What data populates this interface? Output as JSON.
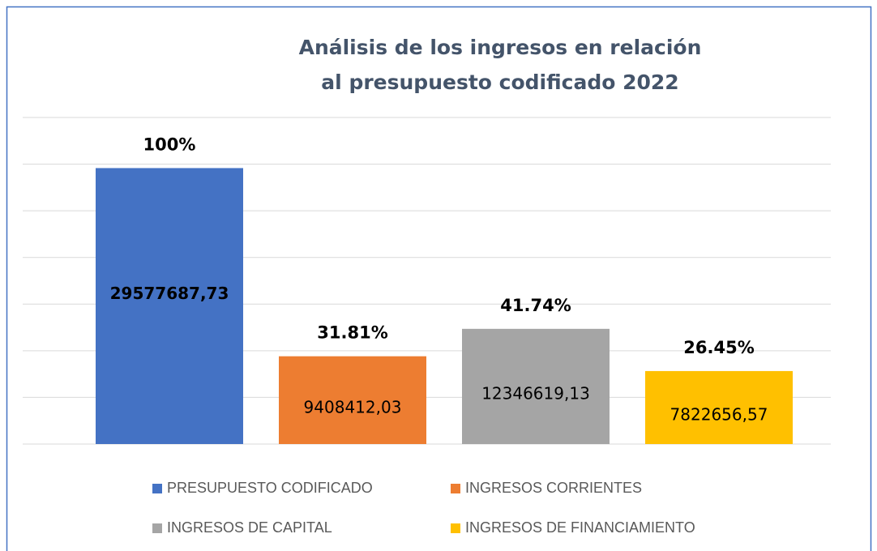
{
  "chart_data": {
    "type": "bar",
    "title": [
      "Análisis de los ingresos en relación",
      "al presupuesto codificado 2022"
    ],
    "categories": [
      "PRESUPUESTO CODIFICADO",
      "INGRESOS CORRIENTES",
      "INGRESOS DE CAPITAL",
      "INGRESOS DE FINANCIAMIENTO"
    ],
    "values": [
      29577687.73,
      9408412.03,
      12346619.13,
      7822656.57
    ],
    "value_labels": [
      "29577687,73",
      "9408412,03",
      "12346619,13",
      "7822656,57"
    ],
    "annotations": [
      "100%",
      "31.81%",
      "41.74%",
      "26.45%"
    ],
    "colors": [
      "#4472c4",
      "#ed7d31",
      "#a5a5a5",
      "#ffc000"
    ],
    "ylim": [
      0,
      35000000
    ],
    "yticks": [
      0,
      5000000,
      10000000,
      15000000,
      20000000,
      25000000,
      30000000,
      35000000
    ],
    "grid": true
  }
}
